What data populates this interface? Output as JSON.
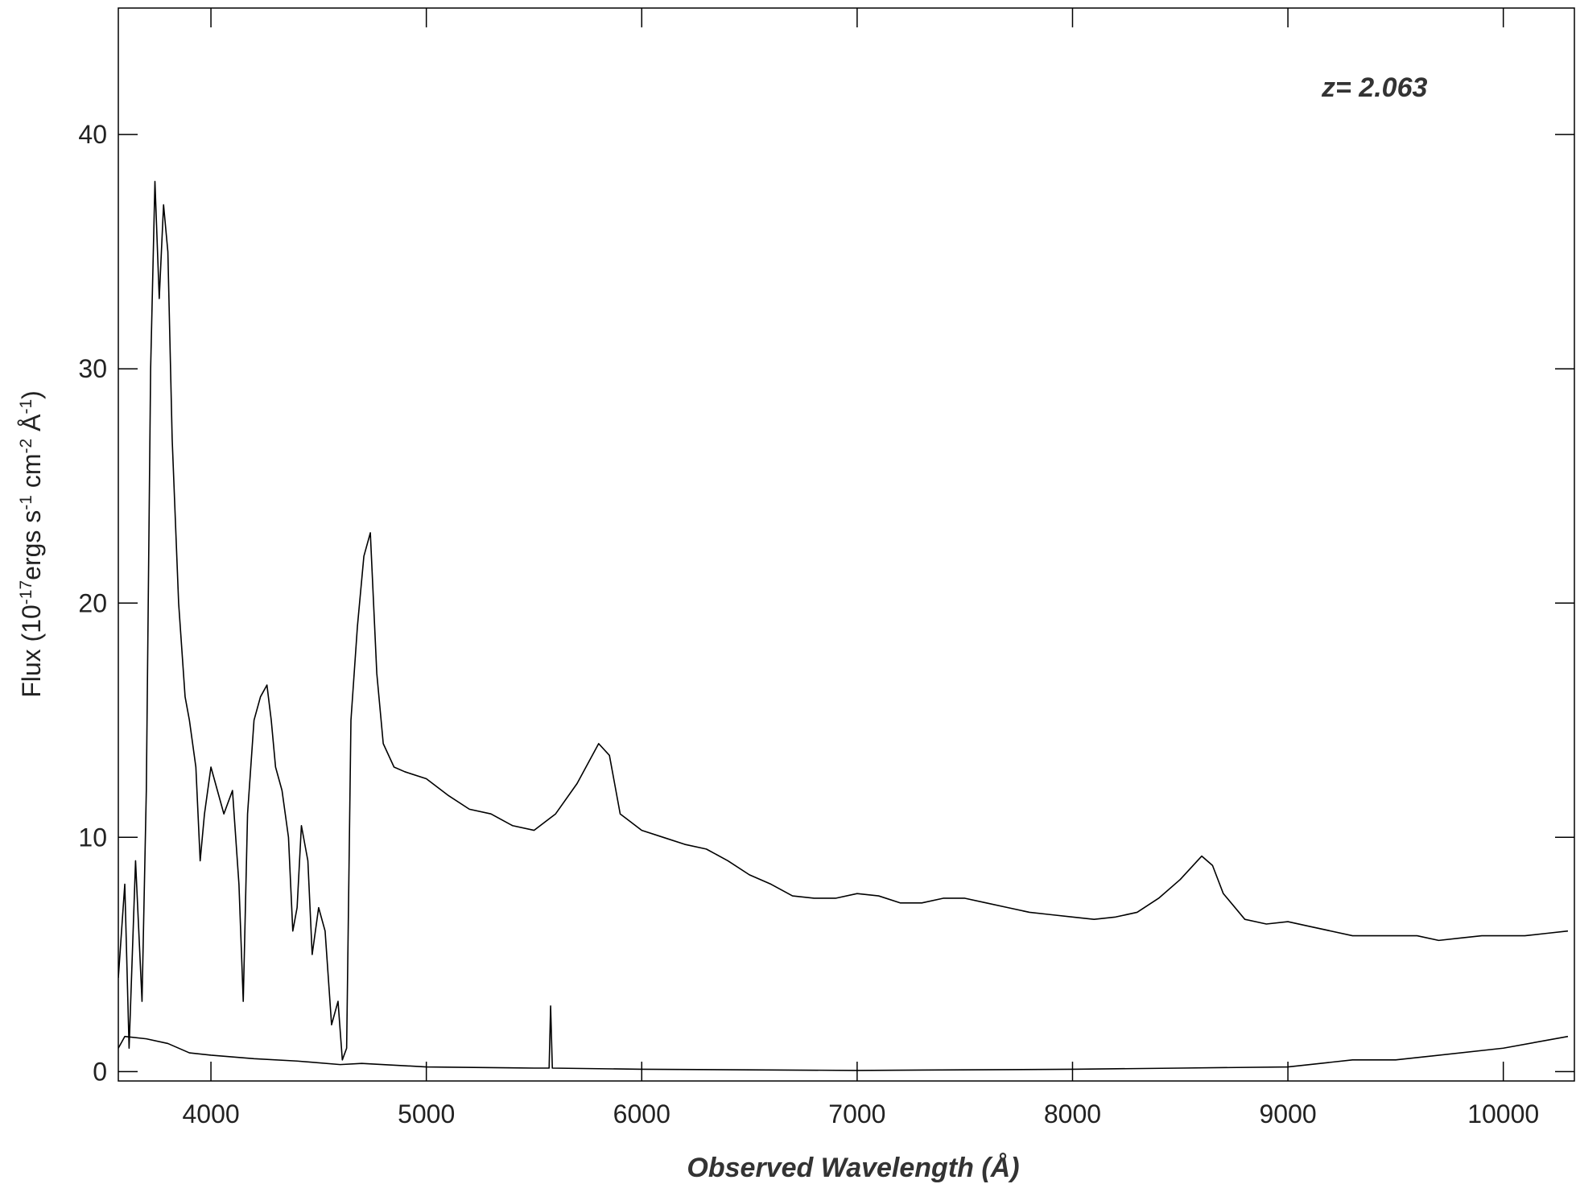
{
  "chart_data": {
    "type": "line",
    "xlabel": "Observed Wavelength (Å)",
    "ylabel": [
      "Flux (10",
      "-17",
      "ergs s",
      "-1",
      " cm",
      "-2",
      " Å",
      "-1",
      ")"
    ],
    "annotation": "z=  2.063",
    "xlim": [
      3570,
      10330
    ],
    "ylim": [
      -0.4,
      45.4
    ],
    "xticks": [
      4000,
      5000,
      6000,
      7000,
      8000,
      9000,
      10000
    ],
    "yticks": [
      0,
      10,
      20,
      30,
      40
    ],
    "series": [
      {
        "color": "#000000",
        "x": [
          3570,
          3600,
          3620,
          3650,
          3680,
          3700,
          3720,
          3740,
          3760,
          3780,
          3800,
          3820,
          3850,
          3880,
          3900,
          3930,
          3950,
          3970,
          4000,
          4030,
          4060,
          4100,
          4130,
          4150,
          4170,
          4200,
          4230,
          4260,
          4280,
          4300,
          4330,
          4360,
          4380,
          4400,
          4420,
          4450,
          4470,
          4500,
          4530,
          4560,
          4590,
          4610,
          4630,
          4650,
          4680,
          4710,
          4740,
          4770,
          4800,
          4850,
          4900,
          5000,
          5100,
          5200,
          5300,
          5400,
          5500,
          5600,
          5700,
          5800,
          5850,
          5900,
          6000,
          6100,
          6200,
          6300,
          6400,
          6500,
          6600,
          6700,
          6800,
          6900,
          7000,
          7100,
          7200,
          7300,
          7400,
          7500,
          7600,
          7700,
          7800,
          7900,
          8000,
          8100,
          8200,
          8300,
          8400,
          8500,
          8600,
          8650,
          8700,
          8800,
          8900,
          9000,
          9100,
          9200,
          9300,
          9400,
          9500,
          9600,
          9700,
          9800,
          9900,
          10000,
          10100,
          10200,
          10300
        ],
        "values": [
          4,
          8,
          1,
          9,
          3,
          12,
          30,
          38,
          33,
          37,
          35,
          27,
          20,
          16,
          15,
          13,
          9,
          11,
          13,
          12,
          11,
          12,
          8,
          3,
          11,
          15,
          16,
          16.5,
          15,
          13,
          12,
          10,
          6,
          7,
          10.5,
          9,
          5,
          7,
          6,
          2,
          3,
          0.5,
          1,
          15,
          19,
          22,
          23,
          17,
          14,
          13,
          12.8,
          12.5,
          11.8,
          11.2,
          11,
          10.5,
          10.3,
          11,
          12.3,
          14,
          13.5,
          11,
          10.3,
          10,
          9.7,
          9.5,
          9,
          8.4,
          8,
          7.5,
          7.4,
          7.4,
          7.6,
          7.5,
          7.2,
          7.2,
          7.4,
          7.4,
          7.2,
          7,
          6.8,
          6.7,
          6.6,
          6.5,
          6.6,
          6.8,
          7.4,
          8.2,
          9.2,
          8.8,
          7.6,
          6.5,
          6.3,
          6.4,
          6.2,
          6,
          5.8,
          5.8,
          5.8,
          5.8,
          5.6,
          5.7,
          5.8,
          5.8,
          5.8,
          5.9,
          6
        ]
      },
      {
        "color": "#000000",
        "x": [
          3570,
          3600,
          3700,
          3800,
          3900,
          4000,
          4200,
          4400,
          4600,
          4700,
          5000,
          5500,
          5570,
          5577,
          5585,
          6000,
          7000,
          8000,
          8500,
          9000,
          9300,
          9500,
          10000,
          10300
        ],
        "values": [
          1,
          1.5,
          1.4,
          1.2,
          0.8,
          0.7,
          0.55,
          0.45,
          0.3,
          0.35,
          0.2,
          0.15,
          0.15,
          2.8,
          0.15,
          0.1,
          0.05,
          0.1,
          0.15,
          0.2,
          0.5,
          0.5,
          1,
          1.5
        ]
      }
    ]
  }
}
